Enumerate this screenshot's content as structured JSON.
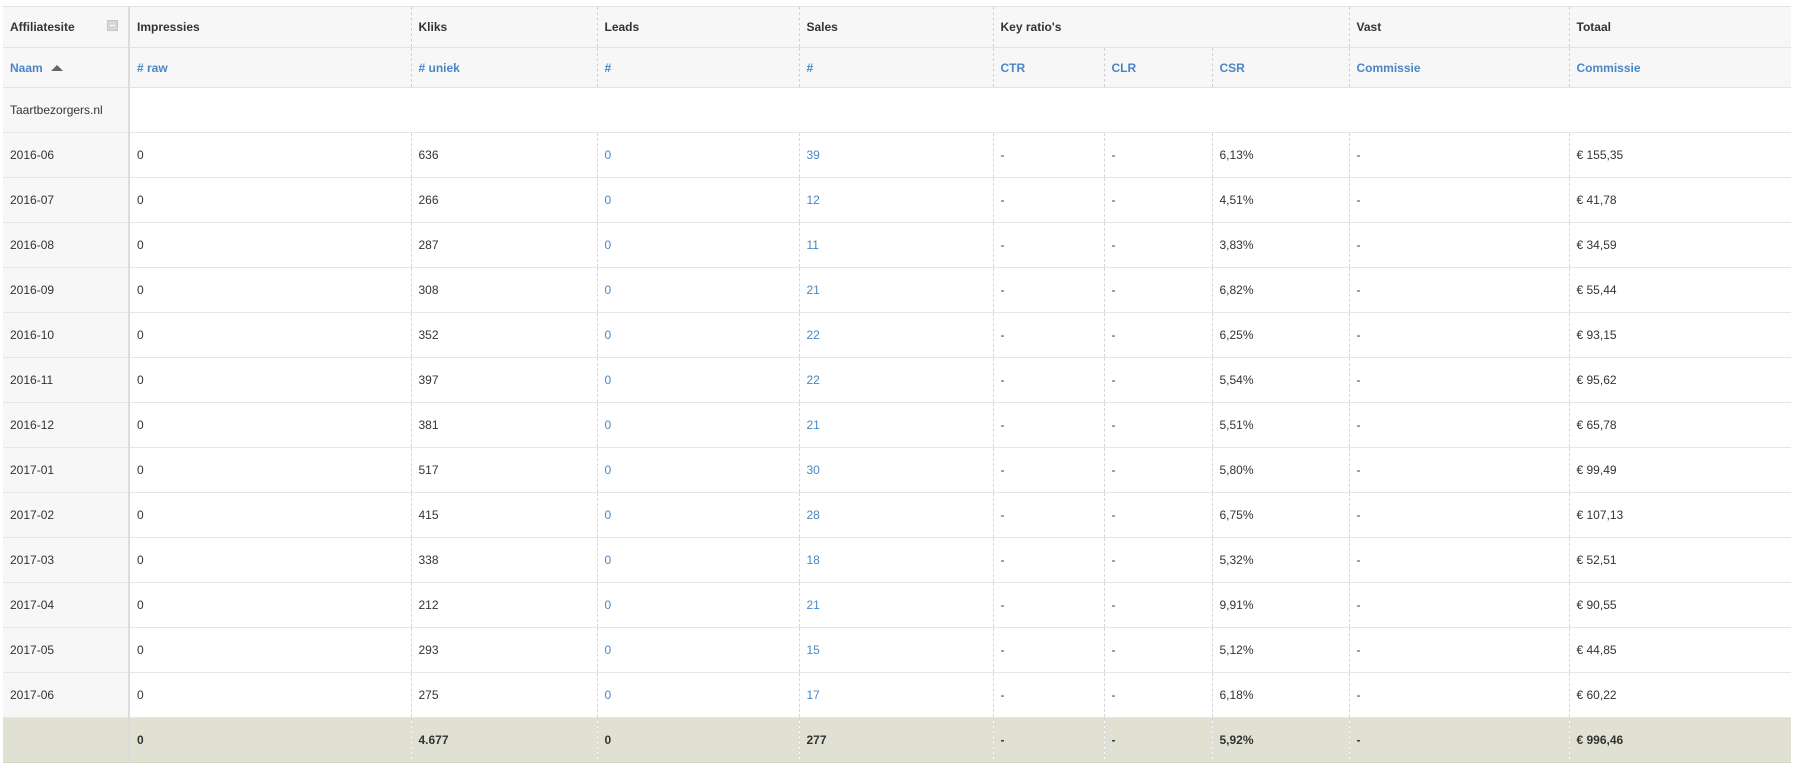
{
  "headers": {
    "groups": [
      "Affiliatesite",
      "Impressies",
      "Kliks",
      "Leads",
      "Sales",
      "Key ratio's",
      "Vast",
      "Totaal"
    ],
    "sub": [
      "Naam",
      "# raw",
      "# uniek",
      "#",
      "#",
      "CTR",
      "CLR",
      "CSR",
      "Commissie",
      "Commissie"
    ]
  },
  "site": "Taartbezorgers.nl",
  "rows": [
    {
      "period": "2016-06",
      "raw": "0",
      "uniek": "636",
      "leads": "0",
      "sales": "39",
      "ctr": "-",
      "clr": "-",
      "csr": "6,13%",
      "vast": "-",
      "totaal": "€ 155,35"
    },
    {
      "period": "2016-07",
      "raw": "0",
      "uniek": "266",
      "leads": "0",
      "sales": "12",
      "ctr": "-",
      "clr": "-",
      "csr": "4,51%",
      "vast": "-",
      "totaal": "€ 41,78"
    },
    {
      "period": "2016-08",
      "raw": "0",
      "uniek": "287",
      "leads": "0",
      "sales": "11",
      "ctr": "-",
      "clr": "-",
      "csr": "3,83%",
      "vast": "-",
      "totaal": "€ 34,59"
    },
    {
      "period": "2016-09",
      "raw": "0",
      "uniek": "308",
      "leads": "0",
      "sales": "21",
      "ctr": "-",
      "clr": "-",
      "csr": "6,82%",
      "vast": "-",
      "totaal": "€ 55,44"
    },
    {
      "period": "2016-10",
      "raw": "0",
      "uniek": "352",
      "leads": "0",
      "sales": "22",
      "ctr": "-",
      "clr": "-",
      "csr": "6,25%",
      "vast": "-",
      "totaal": "€ 93,15"
    },
    {
      "period": "2016-11",
      "raw": "0",
      "uniek": "397",
      "leads": "0",
      "sales": "22",
      "ctr": "-",
      "clr": "-",
      "csr": "5,54%",
      "vast": "-",
      "totaal": "€ 95,62"
    },
    {
      "period": "2016-12",
      "raw": "0",
      "uniek": "381",
      "leads": "0",
      "sales": "21",
      "ctr": "-",
      "clr": "-",
      "csr": "5,51%",
      "vast": "-",
      "totaal": "€ 65,78"
    },
    {
      "period": "2017-01",
      "raw": "0",
      "uniek": "517",
      "leads": "0",
      "sales": "30",
      "ctr": "-",
      "clr": "-",
      "csr": "5,80%",
      "vast": "-",
      "totaal": "€ 99,49"
    },
    {
      "period": "2017-02",
      "raw": "0",
      "uniek": "415",
      "leads": "0",
      "sales": "28",
      "ctr": "-",
      "clr": "-",
      "csr": "6,75%",
      "vast": "-",
      "totaal": "€ 107,13"
    },
    {
      "period": "2017-03",
      "raw": "0",
      "uniek": "338",
      "leads": "0",
      "sales": "18",
      "ctr": "-",
      "clr": "-",
      "csr": "5,32%",
      "vast": "-",
      "totaal": "€ 52,51"
    },
    {
      "period": "2017-04",
      "raw": "0",
      "uniek": "212",
      "leads": "0",
      "sales": "21",
      "ctr": "-",
      "clr": "-",
      "csr": "9,91%",
      "vast": "-",
      "totaal": "€ 90,55"
    },
    {
      "period": "2017-05",
      "raw": "0",
      "uniek": "293",
      "leads": "0",
      "sales": "15",
      "ctr": "-",
      "clr": "-",
      "csr": "5,12%",
      "vast": "-",
      "totaal": "€ 44,85"
    },
    {
      "period": "2017-06",
      "raw": "0",
      "uniek": "275",
      "leads": "0",
      "sales": "17",
      "ctr": "-",
      "clr": "-",
      "csr": "6,18%",
      "vast": "-",
      "totaal": "€ 60,22"
    }
  ],
  "totals": {
    "raw": "0",
    "uniek": "4.677",
    "leads": "0",
    "sales": "277",
    "ctr": "-",
    "clr": "-",
    "csr": "5,92%",
    "vast": "-",
    "totaal": "€ 996,46"
  },
  "colors": {
    "link": "#4a86c5",
    "header_bg": "#f7f7f7",
    "total_bg": "#e1e1d3"
  }
}
